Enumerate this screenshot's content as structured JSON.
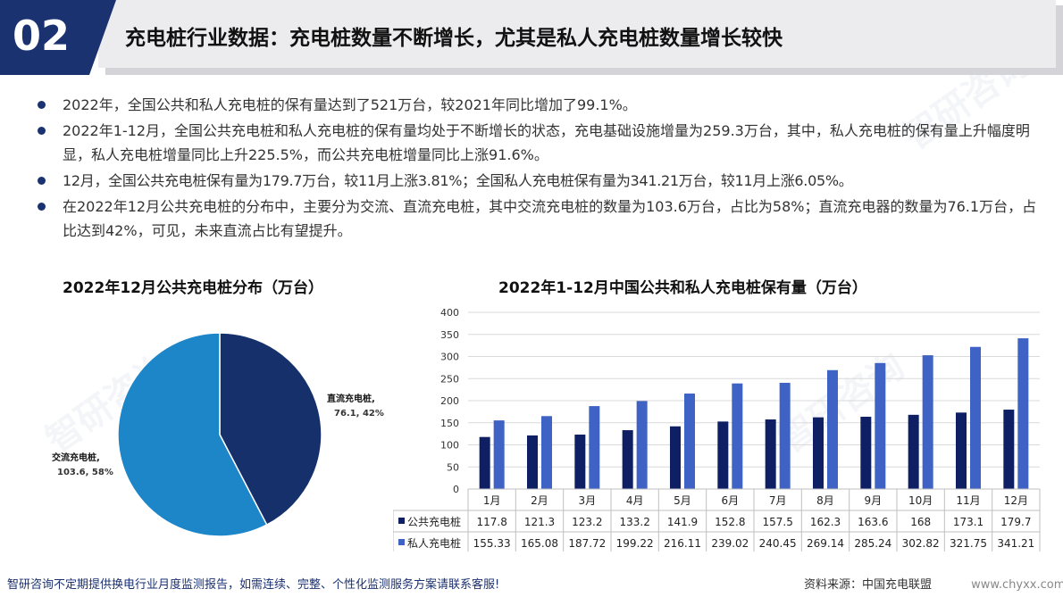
{
  "header": {
    "number": "02",
    "title": "充电桩行业数据：充电桩数量不断增长，尤其是私人充电桩数量增长较快"
  },
  "bullets": [
    "2022年，全国公共和私人充电桩的保有量达到了521万台，较2021年同比增加了99.1%。",
    "2022年1-12月，全国公共充电桩和私人充电桩的保有量均处于不断增长的状态，充电基础设施增量为259.3万台，其中，私人充电桩的保有量上升幅度明显，私人充电桩增量同比上升225.5%，而公共充电桩增量同比上涨91.6%。",
    "12月，全国公共充电桩保有量为179.7万台，较11月上涨3.81%；全国私人充电桩保有量为341.21万台，较11月上涨6.05%。",
    "在2022年12月公共充电桩的分布中，主要分为交流、直流充电桩，其中交流充电桩的数量为103.6万台，占比为58%；直流充电器的数量为76.1万台，占比达到42%，可见，未来直流占比有望提升。"
  ],
  "watermark": "智研咨询",
  "footer": {
    "left": "智研咨询不定期提供换电行业月度监测报告，如需连续、完整、个性化监测服务方案请联系客服!",
    "source": "资料来源：中国充电联盟",
    "url": "www.chyxx.com"
  },
  "colors": {
    "navy": "#1b3271",
    "public": "#0e1f63",
    "private": "#3f63c4",
    "ac": "#1c86c8",
    "dc": "#15306b"
  },
  "chart_data": [
    {
      "type": "pie",
      "title": "2022年12月公共充电桩分布（万台）",
      "slices": [
        {
          "name": "直流充电桩",
          "value": 76.1,
          "percent": "42%",
          "label": "76.1, 42%"
        },
        {
          "name": "交流充电桩",
          "value": 103.6,
          "percent": "58%",
          "label": "103.6, 58%"
        }
      ]
    },
    {
      "type": "bar",
      "title": "2022年1-12月中国公共和私人充电桩保有量（万台）",
      "categories": [
        "1月",
        "2月",
        "3月",
        "4月",
        "5月",
        "6月",
        "7月",
        "8月",
        "9月",
        "10月",
        "11月",
        "12月"
      ],
      "series": [
        {
          "name": "公共充电桩",
          "values": [
            117.8,
            121.3,
            123.2,
            133.2,
            141.9,
            152.8,
            157.5,
            162.3,
            163.6,
            168,
            173.1,
            179.7
          ]
        },
        {
          "name": "私人充电桩",
          "values": [
            155.33,
            165.08,
            187.72,
            199.22,
            216.11,
            239.02,
            240.45,
            269.14,
            285.24,
            302.82,
            321.75,
            341.21
          ]
        }
      ],
      "ylim": [
        0,
        400
      ],
      "yticks": [
        0,
        50,
        100,
        150,
        200,
        250,
        300,
        350,
        400
      ],
      "grid": true,
      "legend": "data-table"
    }
  ]
}
